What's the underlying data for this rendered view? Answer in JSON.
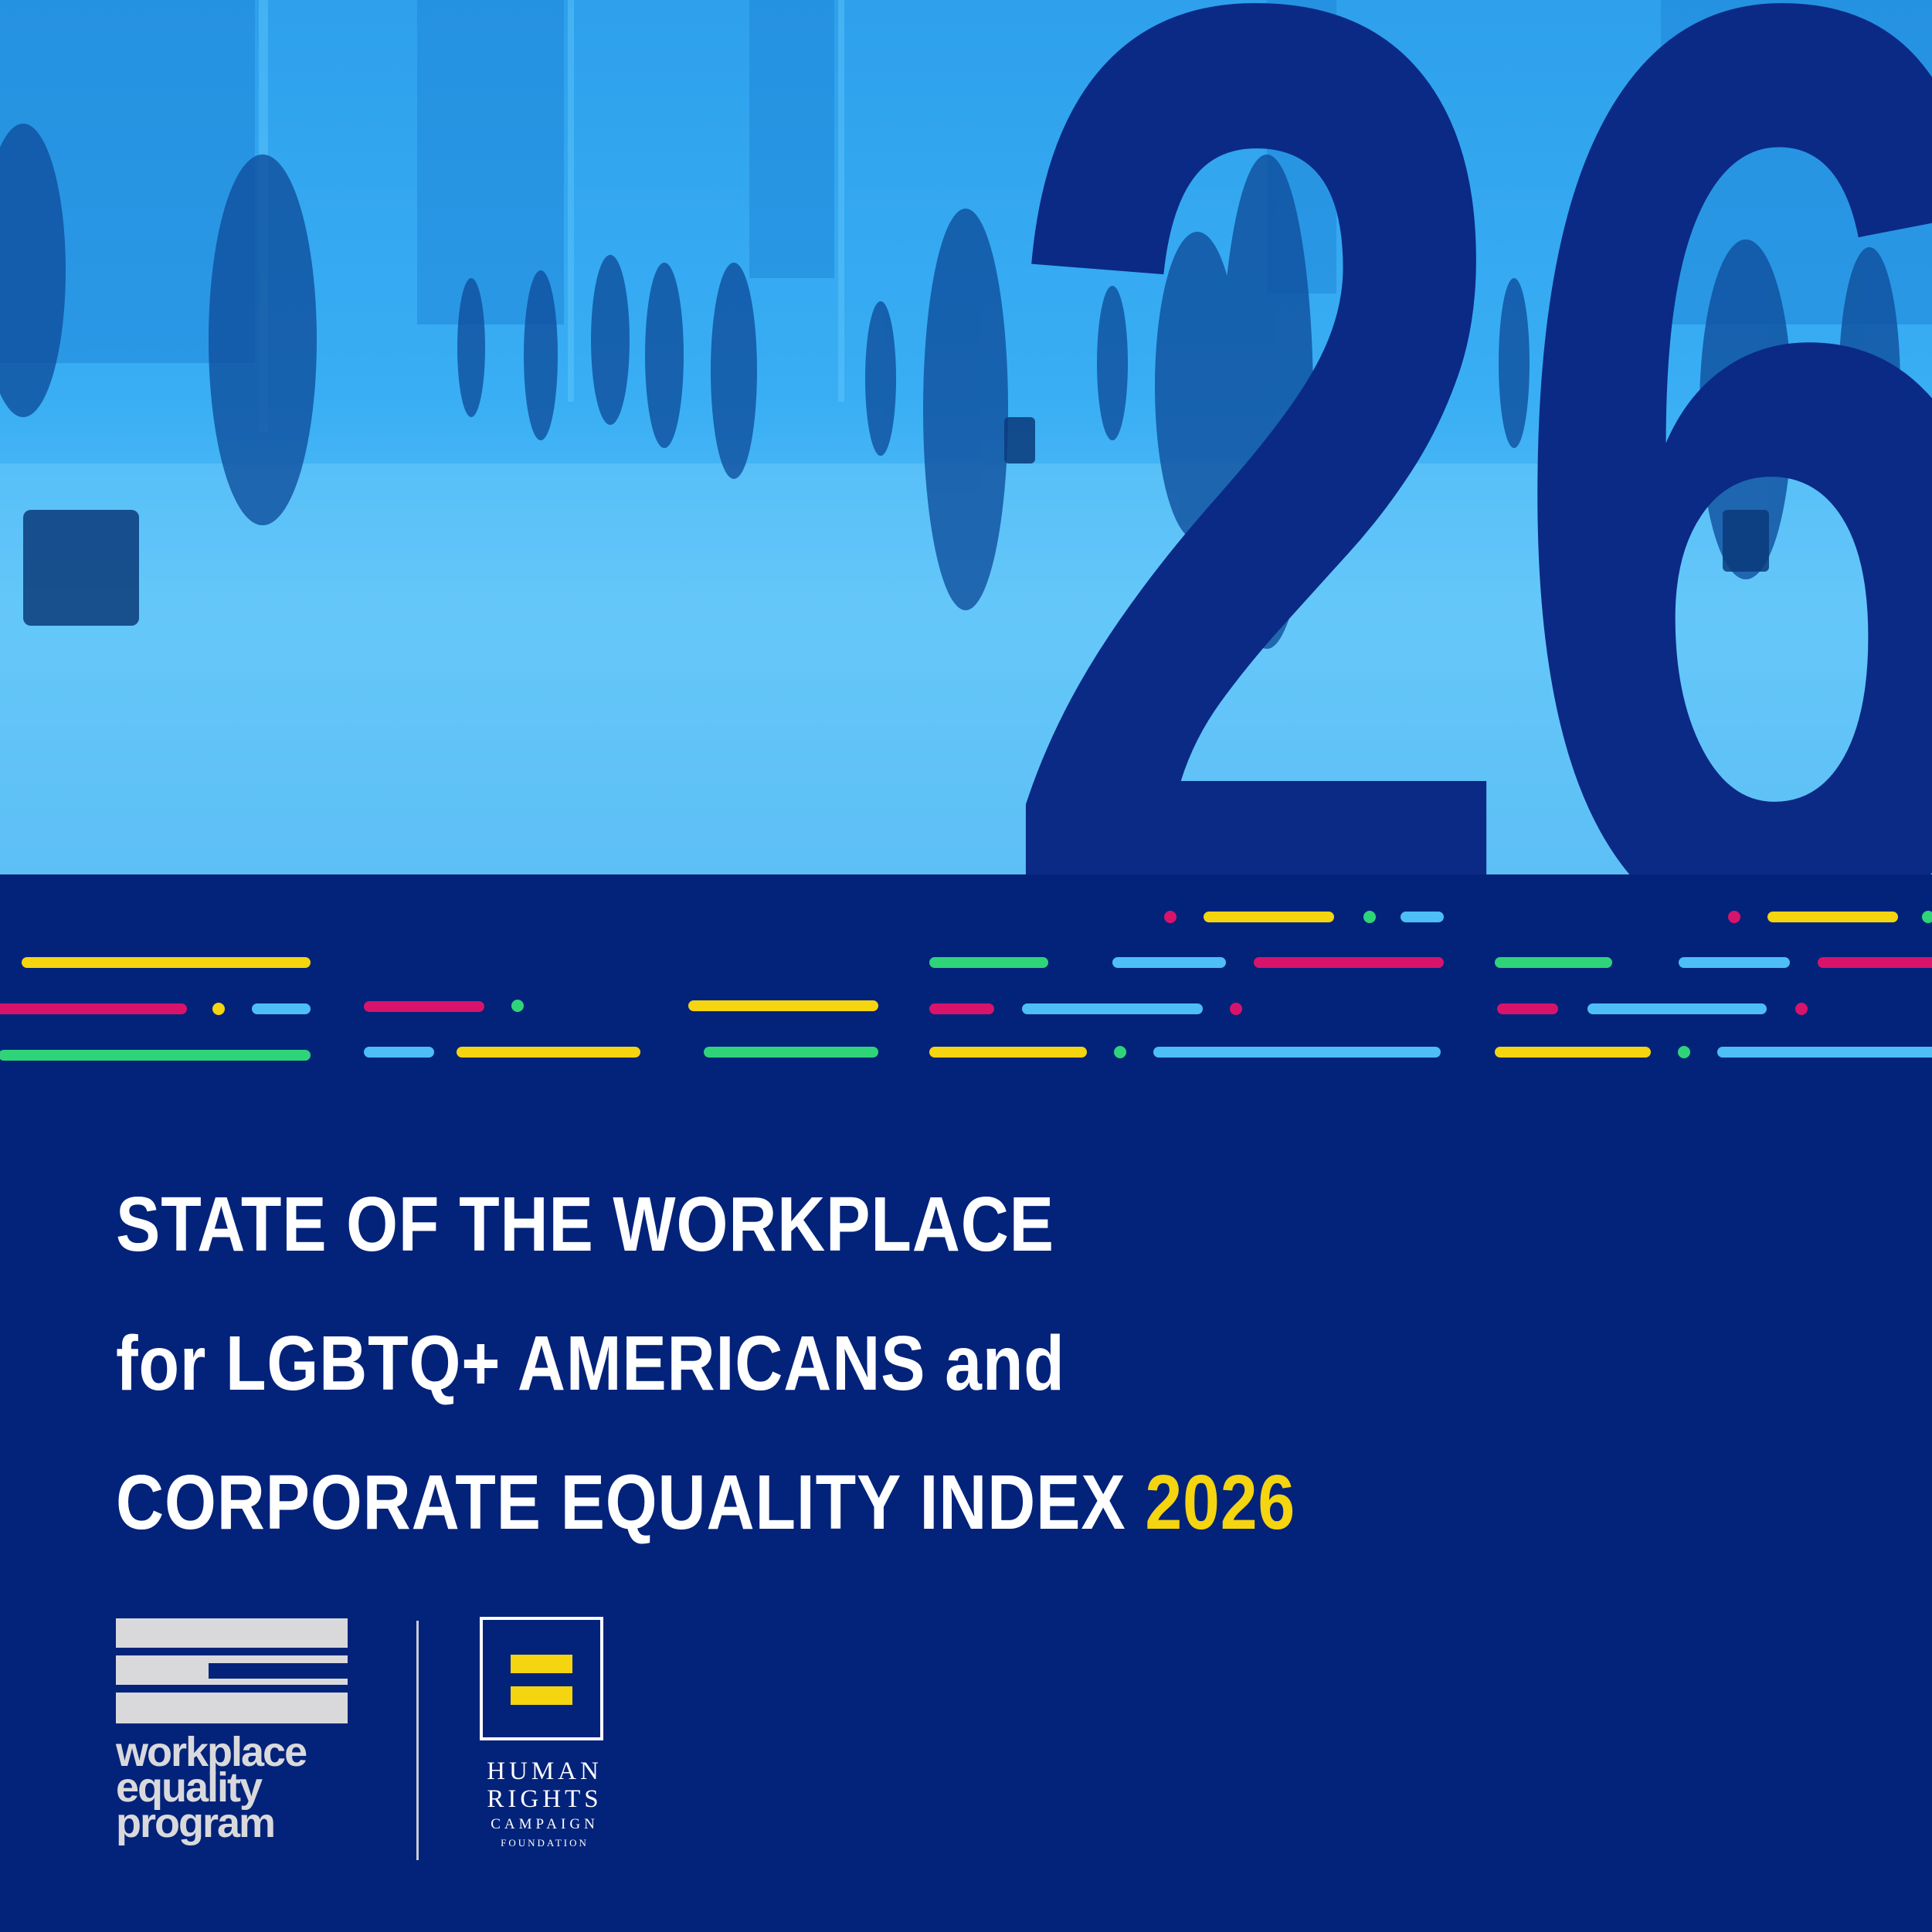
{
  "hero": {
    "big_number": "26",
    "photo_description_icon": "office-lobby-people-photo"
  },
  "headline": {
    "line1": "STATE OF THE WORKPLACE",
    "line2": "for LGBTQ+ AMERICANS and",
    "line3_text": "CORPORATE EQUALITY INDEX",
    "line3_year": "2026"
  },
  "logos": {
    "wep": {
      "line1": "workplace",
      "line2": "equality",
      "line3": "program",
      "icon": "wep-stripes-logo"
    },
    "hrc": {
      "line1": "HUMAN",
      "line2": "RIGHTS",
      "line3": "CAMPAIGN",
      "line4": "FOUNDATION",
      "icon": "hrc-equal-sign-logo"
    }
  },
  "colors": {
    "navy": "#03237a",
    "sky": "#39aef4",
    "yellow": "#f5d410",
    "pink": "#d8136c",
    "green": "#2fd479",
    "light_blue": "#4dbef6",
    "logo_grey": "#d9d9dc"
  }
}
